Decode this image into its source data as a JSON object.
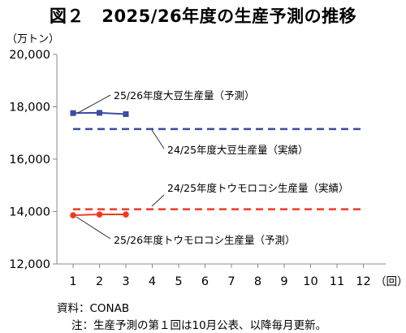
{
  "title": "図２　2025/26年度の生産予測の推移",
  "chart_data": {
    "type": "line",
    "title": "図２　2025/26年度の生産予測の推移",
    "unit_label": "（万トン）",
    "x_unit_label": "（回）",
    "x": [
      1,
      2,
      3,
      4,
      5,
      6,
      7,
      8,
      9,
      10,
      11,
      12
    ],
    "ylim": [
      12000,
      20000
    ],
    "yticks": [
      "12,000",
      "14,000",
      "16,000",
      "18,000",
      "20,000"
    ],
    "ytick_values": [
      12000,
      14000,
      16000,
      18000,
      20000
    ],
    "grid": false,
    "series": [
      {
        "name": "25/26年度大豆生産量（予測）",
        "style": "solid-square",
        "color": "#3b4ba3",
        "x": [
          1,
          2,
          3
        ],
        "values": [
          17760,
          17770,
          17720
        ]
      },
      {
        "name": "24/25年度大豆生産量（実績）",
        "style": "dashed",
        "color": "#3b4ba3",
        "x": [
          1,
          12
        ],
        "values": [
          17150,
          17150
        ]
      },
      {
        "name": "24/25年度トウモロコシ生産量（実績）",
        "style": "dashed",
        "color": "#ef3b24",
        "x": [
          1,
          12
        ],
        "values": [
          14090,
          14090
        ]
      },
      {
        "name": "25/26年度トウモロコシ生産量（予測）",
        "style": "solid-circle",
        "color": "#ef3b24",
        "x": [
          1,
          2,
          3
        ],
        "values": [
          13860,
          13890,
          13890
        ]
      }
    ]
  },
  "source": "資料：CONAB",
  "note": "注：生産予測の第１回は10月公表、以降毎月更新。"
}
